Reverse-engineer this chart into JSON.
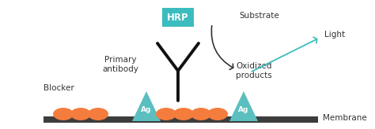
{
  "bg_color": "#ffffff",
  "membrane_color": "#3d3d3d",
  "antibody_color": "#111111",
  "hrp_box_color": "#3bbcbf",
  "hrp_text_color": "#ffffff",
  "teal_triangle_color": "#5bbfc0",
  "orange_ellipse_color": "#f47c3c",
  "teal_arrow_color": "#3bbcbf",
  "dark_arrow_color": "#333333",
  "text_color": "#333333",
  "hrp_label": "HRP",
  "substrate_label": "Substrate",
  "light_label": "Light",
  "oxidized_label": "Oxidized\nproducts",
  "primary_label": "Primary\nantibody",
  "blocker_label": "Blocker",
  "membrane_label": "Membrane",
  "ag_label": "Ag",
  "fig_width": 4.74,
  "fig_height": 1.64,
  "dpi": 100
}
